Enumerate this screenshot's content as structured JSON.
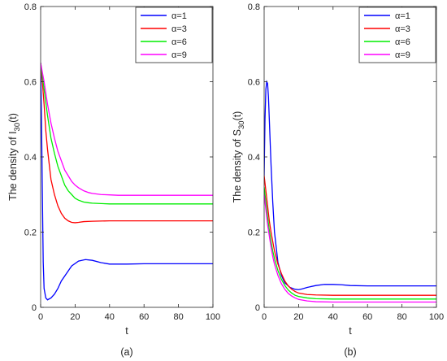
{
  "chart_data": [
    {
      "type": "line",
      "panel_label": "(a)",
      "xlabel": "t",
      "ylabel_base": "The density of I",
      "ylabel_sub": "30",
      "ylabel_tail": "(t)",
      "xlim": [
        0,
        100
      ],
      "ylim": [
        0,
        0.8
      ],
      "xticks": [
        0,
        20,
        40,
        60,
        80,
        100
      ],
      "yticks": [
        0,
        0.2,
        0.4,
        0.6,
        0.8
      ],
      "ytick_labels": [
        "0",
        "0.2",
        "0.4",
        "0.6",
        "0.8"
      ],
      "legend_position": "top-right",
      "series": [
        {
          "name": "α=1",
          "color": "#0000ff",
          "x": [
            0,
            0.5,
            1,
            1.5,
            2,
            3,
            4,
            6,
            8,
            10,
            12,
            15,
            18,
            22,
            26,
            30,
            35,
            40,
            50,
            60,
            80,
            100
          ],
          "values": [
            0.65,
            0.5,
            0.3,
            0.12,
            0.05,
            0.025,
            0.02,
            0.025,
            0.035,
            0.05,
            0.07,
            0.09,
            0.11,
            0.123,
            0.127,
            0.125,
            0.119,
            0.115,
            0.115,
            0.116,
            0.116,
            0.116
          ]
        },
        {
          "name": "α=3",
          "color": "#ff0000",
          "x": [
            0,
            1,
            2,
            3,
            4,
            5,
            6,
            8,
            10,
            12,
            14,
            16,
            18,
            20,
            22,
            25,
            30,
            40,
            50,
            60,
            80,
            100
          ],
          "values": [
            0.65,
            0.6,
            0.54,
            0.47,
            0.42,
            0.38,
            0.34,
            0.3,
            0.27,
            0.25,
            0.237,
            0.23,
            0.226,
            0.225,
            0.226,
            0.228,
            0.229,
            0.23,
            0.23,
            0.23,
            0.23,
            0.23
          ]
        },
        {
          "name": "α=6",
          "color": "#00ee00",
          "x": [
            0,
            2,
            4,
            6,
            8,
            10,
            12,
            14,
            16,
            18,
            20,
            22,
            25,
            28,
            30,
            35,
            40,
            50,
            60,
            80,
            100
          ],
          "values": [
            0.65,
            0.58,
            0.51,
            0.45,
            0.41,
            0.375,
            0.35,
            0.325,
            0.31,
            0.3,
            0.29,
            0.285,
            0.28,
            0.278,
            0.277,
            0.276,
            0.275,
            0.275,
            0.275,
            0.275,
            0.275
          ]
        },
        {
          "name": "α=9",
          "color": "#ff00ff",
          "x": [
            0,
            2,
            4,
            6,
            8,
            10,
            12,
            14,
            16,
            18,
            20,
            22,
            25,
            28,
            30,
            35,
            40,
            45,
            50,
            60,
            80,
            100
          ],
          "values": [
            0.65,
            0.6,
            0.54,
            0.49,
            0.45,
            0.415,
            0.39,
            0.365,
            0.35,
            0.335,
            0.325,
            0.318,
            0.31,
            0.305,
            0.303,
            0.3,
            0.299,
            0.298,
            0.298,
            0.298,
            0.298,
            0.298
          ]
        }
      ]
    },
    {
      "type": "line",
      "panel_label": "(b)",
      "xlabel": "t",
      "ylabel_base": "The density of S",
      "ylabel_sub": "30",
      "ylabel_tail": "(t)",
      "xlim": [
        0,
        100
      ],
      "ylim": [
        0,
        0.8
      ],
      "xticks": [
        0,
        20,
        40,
        60,
        80,
        100
      ],
      "yticks": [
        0,
        0.2,
        0.4,
        0.6,
        0.8
      ],
      "ytick_labels": [
        "0",
        "0.2",
        "0.4",
        "0.6",
        "0.8"
      ],
      "legend_position": "top-right",
      "series": [
        {
          "name": "α=1",
          "color": "#0000ff",
          "x": [
            0,
            0.5,
            1,
            1.5,
            2,
            2.5,
            3,
            4,
            5,
            6,
            8,
            10,
            12,
            15,
            18,
            20,
            22,
            25,
            30,
            35,
            40,
            45,
            50,
            60,
            80,
            100
          ],
          "values": [
            0.35,
            0.5,
            0.58,
            0.6,
            0.595,
            0.56,
            0.5,
            0.38,
            0.28,
            0.2,
            0.12,
            0.085,
            0.065,
            0.053,
            0.048,
            0.047,
            0.049,
            0.053,
            0.058,
            0.061,
            0.061,
            0.06,
            0.058,
            0.057,
            0.057,
            0.057
          ]
        },
        {
          "name": "α=3",
          "color": "#ff0000",
          "x": [
            0,
            1,
            2,
            3,
            4,
            5,
            6,
            8,
            10,
            12,
            14,
            16,
            18,
            20,
            25,
            30,
            40,
            60,
            80,
            100
          ],
          "values": [
            0.35,
            0.31,
            0.27,
            0.23,
            0.2,
            0.175,
            0.15,
            0.115,
            0.09,
            0.07,
            0.057,
            0.048,
            0.042,
            0.038,
            0.034,
            0.033,
            0.032,
            0.032,
            0.032,
            0.032
          ]
        },
        {
          "name": "α=6",
          "color": "#00ee00",
          "x": [
            0,
            1,
            2,
            3,
            4,
            5,
            6,
            8,
            10,
            12,
            14,
            16,
            18,
            20,
            25,
            30,
            40,
            60,
            80,
            100
          ],
          "values": [
            0.32,
            0.28,
            0.24,
            0.205,
            0.175,
            0.15,
            0.13,
            0.098,
            0.075,
            0.058,
            0.046,
            0.038,
            0.032,
            0.029,
            0.025,
            0.023,
            0.022,
            0.022,
            0.022,
            0.022
          ]
        },
        {
          "name": "α=9",
          "color": "#ff00ff",
          "x": [
            0,
            1,
            2,
            3,
            4,
            5,
            6,
            8,
            10,
            12,
            14,
            16,
            18,
            20,
            25,
            30,
            40,
            60,
            80,
            100
          ],
          "values": [
            0.3,
            0.26,
            0.22,
            0.19,
            0.16,
            0.135,
            0.115,
            0.085,
            0.063,
            0.048,
            0.037,
            0.03,
            0.025,
            0.021,
            0.017,
            0.015,
            0.014,
            0.014,
            0.014,
            0.014
          ]
        }
      ]
    }
  ]
}
